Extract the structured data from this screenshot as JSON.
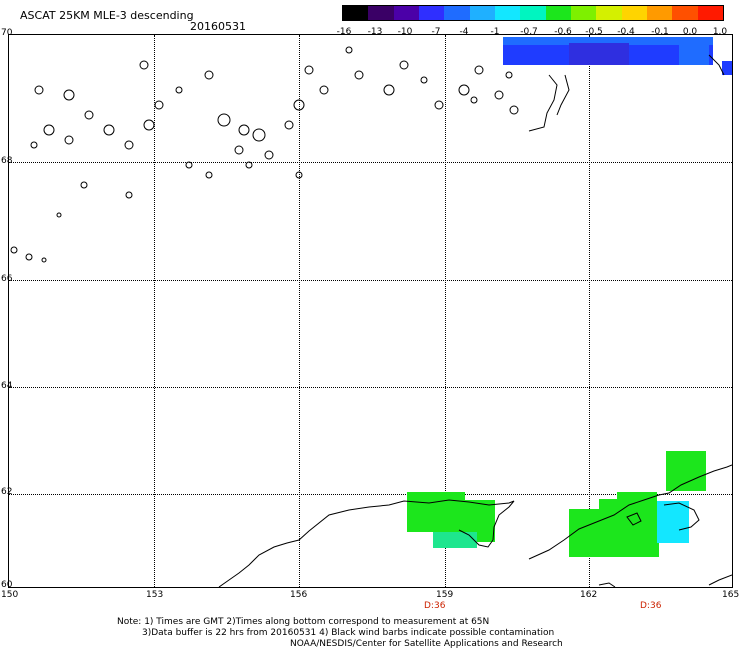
{
  "header": {
    "title": "ASCAT 25KM MLE-3 descending",
    "date": "20160531"
  },
  "colorbar": {
    "labels": [
      "-16",
      "-13",
      "-10",
      "-7",
      "-4",
      "-1",
      "-0.7",
      "-0.6",
      "-0.5",
      "-0.4",
      "-0.1",
      "0.0",
      "1.0"
    ],
    "colors": [
      "#000000",
      "#3a0066",
      "#4b00a8",
      "#2f2fff",
      "#1f6cff",
      "#1fb0ff",
      "#13e7ff",
      "#00f5c0",
      "#1ce61c",
      "#7ef000",
      "#d4f000",
      "#ffd400",
      "#ff9a00",
      "#ff5000",
      "#ff1a00"
    ]
  },
  "axes": {
    "lat_labels": [
      "70",
      "68",
      "66",
      "64",
      "62",
      "60"
    ],
    "lon_labels": [
      "150",
      "153",
      "156",
      "159",
      "162",
      "165"
    ],
    "time_labels": [
      "D:36",
      "D:36"
    ]
  },
  "notes": [
    "Note: 1) Times are GMT 2)Times along bottom correspond to measurement at 65N",
    "3)Data buffer is 22 hrs from 20160531 4) Black wind barbs indicate possible contamination",
    "NOAA/NESDIS/Center for Satellite Applications and Research"
  ]
}
